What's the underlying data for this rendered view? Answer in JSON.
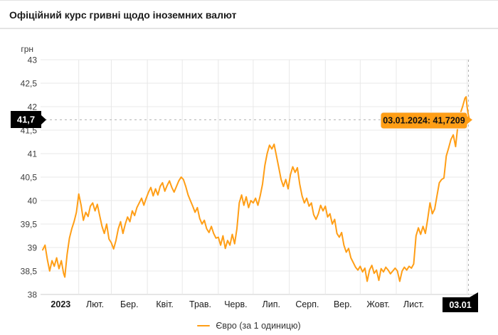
{
  "header": {
    "title": "Офіційний курс гривні щодо іноземних валют"
  },
  "chart": {
    "y_axis_title": "грн",
    "y_ticks": [
      {
        "value": 43,
        "label": "43"
      },
      {
        "value": 42.5,
        "label": "42,5"
      },
      {
        "value": 42,
        "label": "42"
      },
      {
        "value": 41.5,
        "label": "41,5"
      },
      {
        "value": 41,
        "label": "41"
      },
      {
        "value": 40.5,
        "label": "40,5"
      },
      {
        "value": 40,
        "label": "40"
      },
      {
        "value": 39.5,
        "label": "39,5"
      },
      {
        "value": 39,
        "label": "39"
      },
      {
        "value": 38.5,
        "label": "38,5"
      },
      {
        "value": 38,
        "label": "38"
      }
    ],
    "x_labels": [
      {
        "label": "2023",
        "center_day": 15.5,
        "bold": true
      },
      {
        "label": "Лют.",
        "center_day": 45,
        "bold": false
      },
      {
        "label": "Бер.",
        "center_day": 74.5,
        "bold": false
      },
      {
        "label": "Квіт.",
        "center_day": 105,
        "bold": false
      },
      {
        "label": "Трав.",
        "center_day": 135.5,
        "bold": false
      },
      {
        "label": "Черв.",
        "center_day": 166,
        "bold": false
      },
      {
        "label": "Лип.",
        "center_day": 196.5,
        "bold": false
      },
      {
        "label": "Серп.",
        "center_day": 227.5,
        "bold": false
      },
      {
        "label": "Вер.",
        "center_day": 258,
        "bold": false
      },
      {
        "label": "Жовт.",
        "center_day": 288.5,
        "bold": false
      },
      {
        "label": "Лист.",
        "center_day": 319,
        "bold": false
      }
    ],
    "month_start_days": [
      31,
      59,
      90,
      120,
      151,
      181,
      212,
      243,
      273,
      304,
      334,
      365
    ],
    "current_value_badge": "41,7",
    "current_date_badge": "03.01",
    "tooltip_text": "03.01.2024: 41,7209",
    "colors": {
      "line": "#ff9e16",
      "tooltip_bg": "#ff9e16",
      "badge_bg": "#000000",
      "badge_text": "#ffffff",
      "grid": "#e8e8e8",
      "axis": "#cccccc",
      "dashed": "#b0b0b0",
      "tick_text": "#3d3d3d",
      "month_text": "#1a1a1a"
    }
  },
  "legend": {
    "label": "Євро (за 1 одиницю)"
  },
  "chart_data": {
    "type": "line",
    "title": "Офіційний курс гривні щодо іноземних валют",
    "ylabel": "грн",
    "ylim": [
      38,
      43
    ],
    "y_step": 0.5,
    "x_range_days": [
      0,
      367
    ],
    "x_months": [
      "2023",
      "Лют.",
      "Бер.",
      "Квіт.",
      "Трав.",
      "Черв.",
      "Лип.",
      "Серп.",
      "Вер.",
      "Жовт.",
      "Лист.",
      "03.01"
    ],
    "grid": true,
    "legend_position": "bottom-center",
    "highlight_point": {
      "date": "03.01.2024",
      "value": 41.7209
    },
    "series": [
      {
        "name": "Євро (за 1 одиницю)",
        "color": "#ff9e16",
        "points": [
          [
            0,
            38.95
          ],
          [
            2,
            39.05
          ],
          [
            4,
            38.75
          ],
          [
            6,
            38.5
          ],
          [
            8,
            38.72
          ],
          [
            10,
            38.6
          ],
          [
            12,
            38.78
          ],
          [
            14,
            38.55
          ],
          [
            16,
            38.72
          ],
          [
            18,
            38.45
          ],
          [
            19,
            38.37
          ],
          [
            21,
            38.85
          ],
          [
            23,
            39.2
          ],
          [
            25,
            39.4
          ],
          [
            27,
            39.55
          ],
          [
            29,
            39.75
          ],
          [
            31,
            40.14
          ],
          [
            33,
            39.9
          ],
          [
            35,
            39.58
          ],
          [
            37,
            39.75
          ],
          [
            39,
            39.66
          ],
          [
            41,
            39.88
          ],
          [
            43,
            39.95
          ],
          [
            45,
            39.78
          ],
          [
            47,
            39.92
          ],
          [
            49,
            39.68
          ],
          [
            51,
            39.45
          ],
          [
            53,
            39.3
          ],
          [
            55,
            39.5
          ],
          [
            57,
            39.18
          ],
          [
            59,
            39.1
          ],
          [
            61,
            38.97
          ],
          [
            63,
            39.15
          ],
          [
            65,
            39.4
          ],
          [
            67,
            39.55
          ],
          [
            69,
            39.3
          ],
          [
            71,
            39.5
          ],
          [
            73,
            39.65
          ],
          [
            75,
            39.55
          ],
          [
            77,
            39.78
          ],
          [
            79,
            39.68
          ],
          [
            81,
            39.85
          ],
          [
            83,
            39.95
          ],
          [
            85,
            40.05
          ],
          [
            87,
            39.9
          ],
          [
            89,
            40.05
          ],
          [
            91,
            40.18
          ],
          [
            93,
            40.28
          ],
          [
            95,
            40.1
          ],
          [
            97,
            40.25
          ],
          [
            99,
            40.12
          ],
          [
            101,
            40.3
          ],
          [
            103,
            40.38
          ],
          [
            105,
            40.2
          ],
          [
            107,
            40.32
          ],
          [
            109,
            40.42
          ],
          [
            111,
            40.28
          ],
          [
            113,
            40.18
          ],
          [
            115,
            40.3
          ],
          [
            117,
            40.42
          ],
          [
            119,
            40.5
          ],
          [
            121,
            40.45
          ],
          [
            123,
            40.3
          ],
          [
            125,
            40.12
          ],
          [
            127,
            40.0
          ],
          [
            129,
            39.88
          ],
          [
            131,
            39.75
          ],
          [
            133,
            39.85
          ],
          [
            135,
            39.62
          ],
          [
            137,
            39.5
          ],
          [
            139,
            39.58
          ],
          [
            141,
            39.4
          ],
          [
            143,
            39.32
          ],
          [
            145,
            39.45
          ],
          [
            147,
            39.3
          ],
          [
            149,
            39.2
          ],
          [
            151,
            39.22
          ],
          [
            153,
            39.05
          ],
          [
            155,
            39.25
          ],
          [
            157,
            38.98
          ],
          [
            159,
            39.15
          ],
          [
            161,
            39.05
          ],
          [
            163,
            39.28
          ],
          [
            165,
            39.08
          ],
          [
            167,
            39.4
          ],
          [
            169,
            39.95
          ],
          [
            171,
            40.12
          ],
          [
            173,
            39.9
          ],
          [
            175,
            40.08
          ],
          [
            177,
            39.85
          ],
          [
            179,
            40.0
          ],
          [
            181,
            39.95
          ],
          [
            183,
            40.05
          ],
          [
            185,
            39.9
          ],
          [
            187,
            40.1
          ],
          [
            189,
            40.35
          ],
          [
            191,
            40.75
          ],
          [
            193,
            41.0
          ],
          [
            195,
            41.18
          ],
          [
            197,
            41.1
          ],
          [
            199,
            41.2
          ],
          [
            201,
            40.95
          ],
          [
            203,
            40.7
          ],
          [
            205,
            40.45
          ],
          [
            207,
            40.3
          ],
          [
            209,
            40.45
          ],
          [
            211,
            40.25
          ],
          [
            213,
            40.55
          ],
          [
            215,
            40.72
          ],
          [
            217,
            40.6
          ],
          [
            219,
            40.7
          ],
          [
            221,
            40.35
          ],
          [
            223,
            40.1
          ],
          [
            225,
            39.95
          ],
          [
            227,
            40.05
          ],
          [
            229,
            39.88
          ],
          [
            231,
            39.95
          ],
          [
            233,
            39.7
          ],
          [
            235,
            39.6
          ],
          [
            237,
            39.72
          ],
          [
            239,
            39.9
          ],
          [
            241,
            39.78
          ],
          [
            243,
            39.88
          ],
          [
            245,
            39.65
          ],
          [
            247,
            39.72
          ],
          [
            249,
            39.5
          ],
          [
            251,
            39.6
          ],
          [
            253,
            39.3
          ],
          [
            255,
            39.22
          ],
          [
            257,
            39.32
          ],
          [
            259,
            39.05
          ],
          [
            261,
            38.9
          ],
          [
            263,
            38.98
          ],
          [
            265,
            38.78
          ],
          [
            267,
            38.68
          ],
          [
            269,
            38.58
          ],
          [
            271,
            38.52
          ],
          [
            273,
            38.6
          ],
          [
            275,
            38.48
          ],
          [
            277,
            38.56
          ],
          [
            279,
            38.28
          ],
          [
            281,
            38.52
          ],
          [
            283,
            38.62
          ],
          [
            285,
            38.45
          ],
          [
            287,
            38.52
          ],
          [
            289,
            38.3
          ],
          [
            291,
            38.55
          ],
          [
            293,
            38.48
          ],
          [
            295,
            38.58
          ],
          [
            297,
            38.52
          ],
          [
            299,
            38.44
          ],
          [
            301,
            38.5
          ],
          [
            303,
            38.56
          ],
          [
            305,
            38.5
          ],
          [
            307,
            38.28
          ],
          [
            309,
            38.5
          ],
          [
            311,
            38.58
          ],
          [
            313,
            38.52
          ],
          [
            315,
            38.6
          ],
          [
            317,
            38.56
          ],
          [
            319,
            38.65
          ],
          [
            321,
            39.25
          ],
          [
            323,
            39.42
          ],
          [
            325,
            39.28
          ],
          [
            327,
            39.45
          ],
          [
            329,
            39.3
          ],
          [
            331,
            39.6
          ],
          [
            333,
            39.95
          ],
          [
            335,
            39.72
          ],
          [
            337,
            39.82
          ],
          [
            339,
            40.1
          ],
          [
            341,
            40.38
          ],
          [
            343,
            40.45
          ],
          [
            345,
            40.48
          ],
          [
            347,
            40.95
          ],
          [
            349,
            41.12
          ],
          [
            351,
            41.3
          ],
          [
            353,
            41.4
          ],
          [
            355,
            41.15
          ],
          [
            357,
            41.62
          ],
          [
            359,
            41.85
          ],
          [
            361,
            42.0
          ],
          [
            363,
            42.18
          ],
          [
            364,
            42.21
          ],
          [
            365,
            41.98
          ],
          [
            366,
            41.82
          ],
          [
            367,
            41.7209
          ]
        ]
      }
    ]
  }
}
